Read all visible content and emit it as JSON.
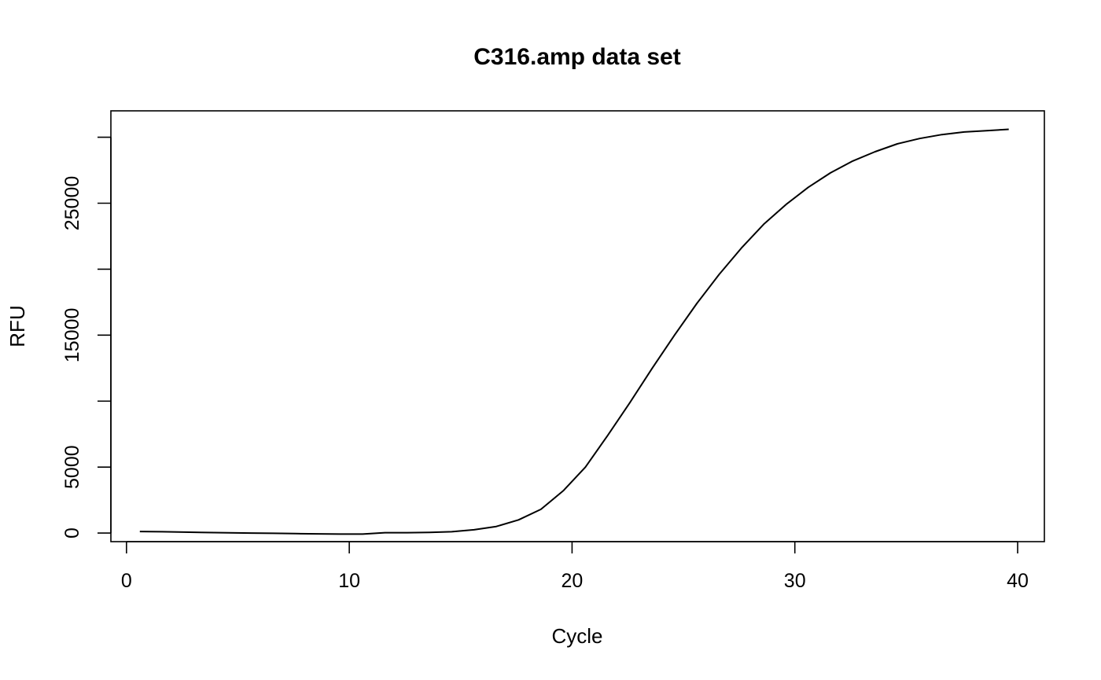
{
  "chart_data": {
    "type": "line",
    "title": "C316.amp data set",
    "xlabel": "Cycle",
    "ylabel": "RFU",
    "xlim": [
      -0.7,
      41.2
    ],
    "ylim": [
      -650,
      32000
    ],
    "xticks": [
      0,
      10,
      20,
      30,
      40
    ],
    "xtick_labels": [
      "0",
      "10",
      "20",
      "30",
      "40"
    ],
    "yticks": [
      0,
      5000,
      10000,
      15000,
      20000,
      25000,
      30000
    ],
    "ytick_labels": [
      "0",
      "5000",
      "",
      "15000",
      "",
      "25000",
      ""
    ],
    "grid": false,
    "legend": "none",
    "series": [
      {
        "x": [
          0.6,
          1.6,
          2.6,
          3.6,
          4.6,
          5.6,
          6.6,
          7.6,
          8.6,
          9.6,
          10.6,
          11.6,
          12.6,
          13.6,
          14.6,
          15.6,
          16.6,
          17.6,
          18.6,
          19.6,
          20.6,
          21.6,
          22.6,
          23.6,
          24.6,
          25.6,
          26.6,
          27.6,
          28.6,
          29.6,
          30.6,
          31.6,
          32.6,
          33.6,
          34.6,
          35.6,
          36.6,
          37.6,
          38.6,
          39.6
        ],
        "values": [
          120,
          100,
          70,
          40,
          20,
          0,
          -20,
          -40,
          -60,
          -80,
          -80,
          30,
          30,
          50,
          100,
          250,
          500,
          1000,
          1800,
          3200,
          5000,
          7400,
          9900,
          12500,
          15000,
          17400,
          19600,
          21600,
          23400,
          24900,
          26200,
          27300,
          28200,
          28900,
          29500,
          29900,
          30200,
          30400,
          30500,
          30600
        ]
      }
    ]
  }
}
